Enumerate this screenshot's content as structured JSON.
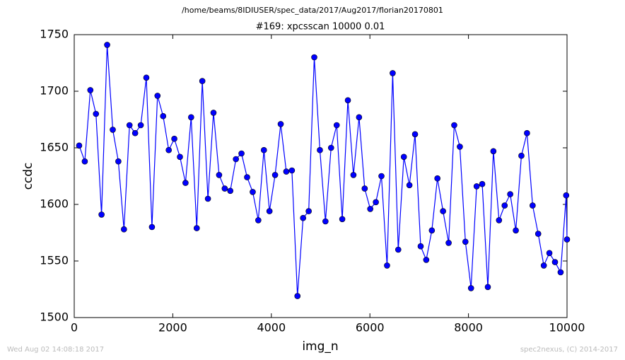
{
  "chart_data": {
    "type": "line",
    "header": "/home/beams/8IDIUSER/spec_data/2017/Aug2017/florian20170801",
    "title": "#169: xpcsscan 10000 0.01",
    "xlabel": "img_n",
    "ylabel": "ccdc",
    "footer_left": "Wed Aug 02 14:08:18 2017",
    "footer_right": "spec2nexus, (C) 2014-2017",
    "xlim": [
      0,
      10000
    ],
    "xticks": [
      0,
      2000,
      4000,
      6000,
      8000,
      10000
    ],
    "ylim": [
      1500,
      1750
    ],
    "yticks": [
      1500,
      1550,
      1600,
      1650,
      1700,
      1750
    ],
    "grid": false,
    "series": [
      {
        "color": "#0000ff",
        "x": [
          100,
          214,
          327,
          441,
          554,
          668,
          782,
          895,
          1009,
          1122,
          1236,
          1350,
          1463,
          1577,
          1690,
          1804,
          1918,
          2031,
          2145,
          2258,
          2372,
          2486,
          2599,
          2713,
          2826,
          2940,
          3054,
          3167,
          3281,
          3394,
          3508,
          3622,
          3735,
          3849,
          3962,
          4076,
          4190,
          4303,
          4417,
          4530,
          4644,
          4758,
          4871,
          4985,
          5098,
          5212,
          5326,
          5439,
          5553,
          5666,
          5780,
          5894,
          6007,
          6121,
          6234,
          6348,
          6462,
          6575,
          6689,
          6802,
          6916,
          7030,
          7143,
          7257,
          7370,
          7484,
          7598,
          7711,
          7825,
          7938,
          8052,
          8166,
          8279,
          8393,
          8506,
          8620,
          8734,
          8847,
          8961,
          9074,
          9188,
          9302,
          9415,
          9529,
          9642,
          9756,
          9870,
          9983,
          10000
        ],
        "values": [
          1652,
          1638,
          1701,
          1680,
          1591,
          1741,
          1666,
          1638,
          1578,
          1670,
          1663,
          1670,
          1712,
          1580,
          1696,
          1678,
          1648,
          1658,
          1642,
          1619,
          1677,
          1579,
          1709,
          1605,
          1681,
          1626,
          1614,
          1612,
          1640,
          1645,
          1624,
          1611,
          1586,
          1648,
          1594,
          1626,
          1671,
          1629,
          1630,
          1519,
          1588,
          1594,
          1730,
          1648,
          1585,
          1650,
          1670,
          1587,
          1692,
          1626,
          1677,
          1614,
          1596,
          1602,
          1625,
          1546,
          1716,
          1560,
          1642,
          1617,
          1662,
          1563,
          1551,
          1577,
          1623,
          1594,
          1566,
          1670,
          1651,
          1567,
          1526,
          1616,
          1618,
          1527,
          1647,
          1586,
          1599,
          1609,
          1577,
          1643,
          1663,
          1599,
          1574,
          1546,
          1557,
          1549,
          1540,
          1608,
          1569
        ]
      }
    ]
  }
}
